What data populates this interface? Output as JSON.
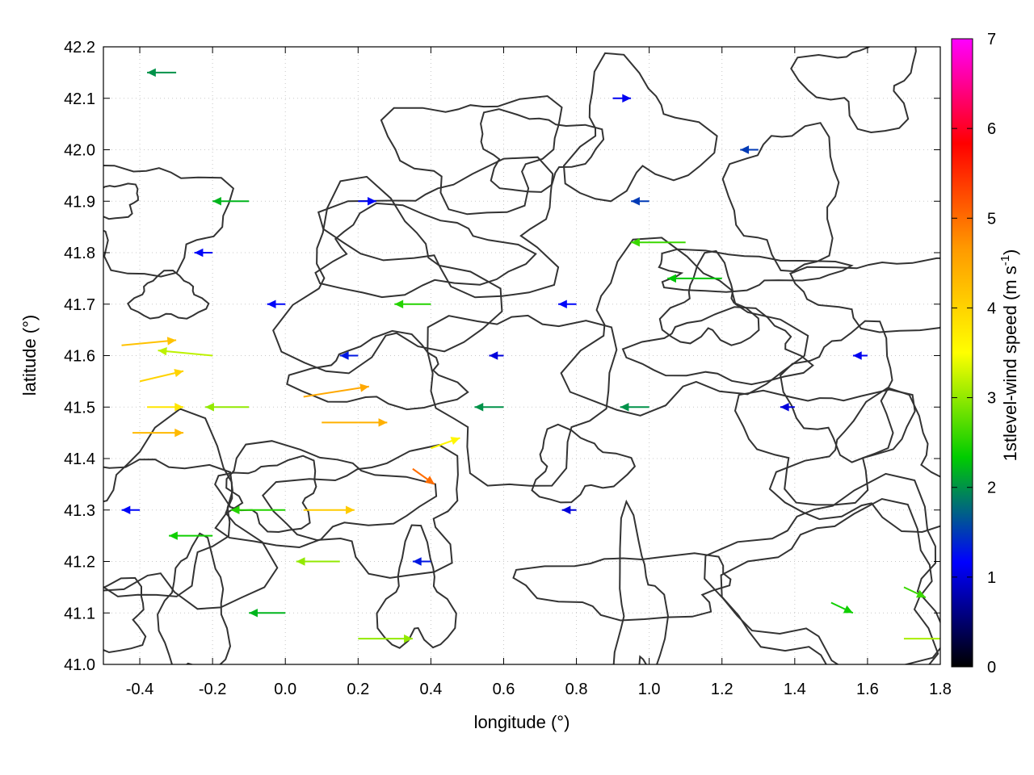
{
  "chart_data": {
    "type": "vector-field",
    "xlabel": "longitude (°)",
    "ylabel": "latitude (°)",
    "xlim": [
      -0.5,
      1.8
    ],
    "ylim": [
      41.0,
      42.2
    ],
    "x_ticks": [
      -0.4,
      -0.2,
      0.0,
      0.2,
      0.4,
      0.6,
      0.8,
      1.0,
      1.2,
      1.4,
      1.6,
      1.8
    ],
    "y_ticks": [
      41.0,
      41.1,
      41.2,
      41.3,
      41.4,
      41.5,
      41.6,
      41.7,
      41.8,
      41.9,
      42.0,
      42.1,
      42.2
    ],
    "x_tick_labels": [
      "-0.4",
      "-0.2",
      "0.0",
      "0.2",
      "0.4",
      "0.6",
      "0.8",
      "1.0",
      "1.2",
      "1.4",
      "1.6",
      "1.8"
    ],
    "y_tick_labels": [
      "41.0",
      "41.1",
      "41.2",
      "41.3",
      "41.4",
      "41.5",
      "41.6",
      "41.7",
      "41.8",
      "41.9",
      "42.0",
      "42.1",
      "42.2"
    ],
    "grid": true,
    "colorbar": {
      "label": "1stlevel-wind speed (m s",
      "label_sup": "-1",
      "label_end": ")",
      "range": [
        0,
        7
      ],
      "ticks": [
        0,
        1,
        2,
        3,
        4,
        5,
        6,
        7
      ],
      "tick_labels": [
        "0",
        "1",
        "2",
        "3",
        "4",
        "5",
        "6",
        "7"
      ],
      "colors": [
        "#000000",
        "#0000ff",
        "#00cc00",
        "#ffff00",
        "#ff9900",
        "#ff0000",
        "#ff00ff"
      ]
    },
    "contour_color": "#333333",
    "vectors": [
      {
        "x": -0.45,
        "y": 41.62,
        "u": 0.15,
        "v": 0.01,
        "speed": 4.2
      },
      {
        "x": -0.4,
        "y": 41.55,
        "u": 0.12,
        "v": 0.02,
        "speed": 4.0
      },
      {
        "x": -0.42,
        "y": 41.45,
        "u": 0.14,
        "v": 0.0,
        "speed": 4.3
      },
      {
        "x": -0.38,
        "y": 41.5,
        "u": 0.1,
        "v": 0.0,
        "speed": 3.8
      },
      {
        "x": 0.05,
        "y": 41.52,
        "u": 0.18,
        "v": 0.02,
        "speed": 4.5
      },
      {
        "x": 0.1,
        "y": 41.47,
        "u": 0.18,
        "v": 0.0,
        "speed": 4.4
      },
      {
        "x": 0.05,
        "y": 41.3,
        "u": 0.14,
        "v": 0.0,
        "speed": 4.1
      },
      {
        "x": 0.35,
        "y": 41.38,
        "u": 0.06,
        "v": -0.03,
        "speed": 5.0
      },
      {
        "x": 0.4,
        "y": 41.42,
        "u": 0.08,
        "v": 0.02,
        "speed": 3.6
      },
      {
        "x": -0.2,
        "y": 41.6,
        "u": -0.15,
        "v": 0.01,
        "speed": 3.2
      },
      {
        "x": -0.1,
        "y": 41.5,
        "u": -0.12,
        "v": 0.0,
        "speed": 3.0
      },
      {
        "x": 0.15,
        "y": 41.2,
        "u": -0.12,
        "v": 0.0,
        "speed": 3.0
      },
      {
        "x": 0.2,
        "y": 41.05,
        "u": 0.15,
        "v": 0.0,
        "speed": 3.0
      },
      {
        "x": 1.7,
        "y": 41.05,
        "u": 0.15,
        "v": 0.0,
        "speed": 3.1
      },
      {
        "x": 1.7,
        "y": 41.15,
        "u": 0.06,
        "v": -0.02,
        "speed": 2.6
      },
      {
        "x": 1.5,
        "y": 41.12,
        "u": 0.06,
        "v": -0.02,
        "speed": 2.4
      },
      {
        "x": 1.1,
        "y": 41.82,
        "u": -0.15,
        "v": 0.0,
        "speed": 2.6
      },
      {
        "x": 1.2,
        "y": 41.75,
        "u": -0.15,
        "v": 0.0,
        "speed": 2.3
      },
      {
        "x": 0.4,
        "y": 41.7,
        "u": -0.1,
        "v": 0.0,
        "speed": 2.5
      },
      {
        "x": -0.1,
        "y": 41.9,
        "u": -0.1,
        "v": 0.0,
        "speed": 2.2
      },
      {
        "x": -0.3,
        "y": 42.15,
        "u": -0.08,
        "v": 0.0,
        "speed": 2.0
      },
      {
        "x": 0.0,
        "y": 41.3,
        "u": -0.15,
        "v": 0.0,
        "speed": 2.5
      },
      {
        "x": -0.2,
        "y": 41.25,
        "u": -0.12,
        "v": 0.0,
        "speed": 2.4
      },
      {
        "x": 0.0,
        "y": 41.1,
        "u": -0.1,
        "v": 0.0,
        "speed": 2.2
      },
      {
        "x": 0.6,
        "y": 41.5,
        "u": -0.08,
        "v": 0.0,
        "speed": 2.0
      },
      {
        "x": 1.0,
        "y": 41.5,
        "u": -0.08,
        "v": 0.0,
        "speed": 2.0
      },
      {
        "x": -0.2,
        "y": 41.8,
        "u": -0.05,
        "v": 0.0,
        "speed": 1.2
      },
      {
        "x": 0.0,
        "y": 41.7,
        "u": -0.05,
        "v": 0.0,
        "speed": 1.2
      },
      {
        "x": 0.2,
        "y": 41.9,
        "u": 0.05,
        "v": 0.0,
        "speed": 1.2
      },
      {
        "x": 0.6,
        "y": 41.6,
        "u": -0.04,
        "v": 0.0,
        "speed": 1.0
      },
      {
        "x": 0.8,
        "y": 41.7,
        "u": -0.05,
        "v": 0.0,
        "speed": 1.2
      },
      {
        "x": 0.9,
        "y": 42.1,
        "u": 0.05,
        "v": 0.0,
        "speed": 1.1
      },
      {
        "x": 1.4,
        "y": 41.5,
        "u": -0.04,
        "v": 0.0,
        "speed": 1.0
      },
      {
        "x": 1.6,
        "y": 41.6,
        "u": -0.04,
        "v": 0.0,
        "speed": 1.1
      },
      {
        "x": 0.2,
        "y": 41.6,
        "u": -0.05,
        "v": 0.0,
        "speed": 1.3
      },
      {
        "x": -0.4,
        "y": 41.3,
        "u": -0.05,
        "v": 0.0,
        "speed": 1.2
      },
      {
        "x": 0.4,
        "y": 41.2,
        "u": -0.05,
        "v": 0.0,
        "speed": 1.3
      },
      {
        "x": 0.8,
        "y": 41.3,
        "u": -0.04,
        "v": 0.0,
        "speed": 1.0
      },
      {
        "x": 1.0,
        "y": 41.9,
        "u": -0.05,
        "v": 0.0,
        "speed": 1.5
      },
      {
        "x": 1.3,
        "y": 42.0,
        "u": -0.05,
        "v": 0.0,
        "speed": 1.5
      }
    ]
  }
}
